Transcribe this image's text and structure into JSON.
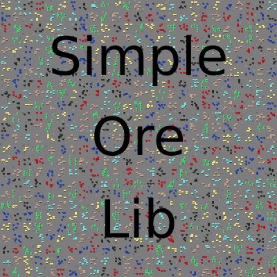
{
  "title": {
    "lines": [
      "Simple",
      "Ore",
      "Lib"
    ]
  },
  "background": {
    "pattern": "ore-texture-tile",
    "stone_color": "#7d7d7d",
    "ore_colors": {
      "coal": "#2e2e2e",
      "iron": "#c9a182",
      "gold": "#f3e86b",
      "redstone": "#c8141a",
      "diamond": "#6de6df",
      "lapis": "#1f43b5",
      "emerald": "#3fd96b"
    }
  }
}
